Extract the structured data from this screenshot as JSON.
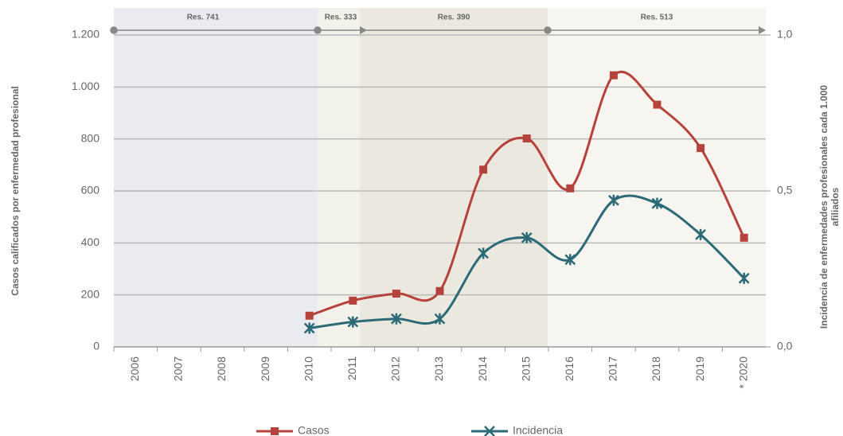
{
  "chart_data": {
    "type": "line",
    "categories": [
      "2006",
      "2007",
      "2008",
      "2009",
      "2010",
      "2011",
      "2012",
      "2013",
      "2014",
      "2015",
      "2016",
      "2017",
      "2018",
      "2019",
      "* 2020"
    ],
    "series": [
      {
        "name": "Casos",
        "color": "#b5433b",
        "values": [
          null,
          null,
          null,
          null,
          120,
          178,
          205,
          215,
          682,
          802,
          610,
          1045,
          932,
          765,
          420
        ]
      },
      {
        "name": "Incidencia",
        "color": "#2d6a78",
        "axis": "y2",
        "values": [
          null,
          null,
          null,
          null,
          0.06,
          0.08,
          0.09,
          0.09,
          0.3,
          0.35,
          0.28,
          0.47,
          0.46,
          0.36,
          0.22
        ]
      }
    ],
    "ylim": [
      0,
      1200
    ],
    "yticks": [
      0,
      200,
      400,
      600,
      800,
      {
        "value": 1000,
        "label": "1.000"
      },
      {
        "value": 1200,
        "label": "1.200"
      }
    ],
    "y2lim": [
      0,
      1
    ],
    "y2ticks": [
      {
        "value": 0,
        "label": "0,0"
      },
      {
        "value": 0.5,
        "label": "0,5"
      },
      {
        "value": 1,
        "label": "1,0"
      }
    ],
    "ylabel": "Casos calificados por enfermedad profesional",
    "y2label": [
      "Incidencia de enfermedades profesionales cada 1.000",
      "afiliados"
    ],
    "periods": [
      "Res. 741",
      "Res. 333",
      "Res. 390",
      "Res. 513"
    ],
    "grid": true,
    "legend": "bottom"
  }
}
